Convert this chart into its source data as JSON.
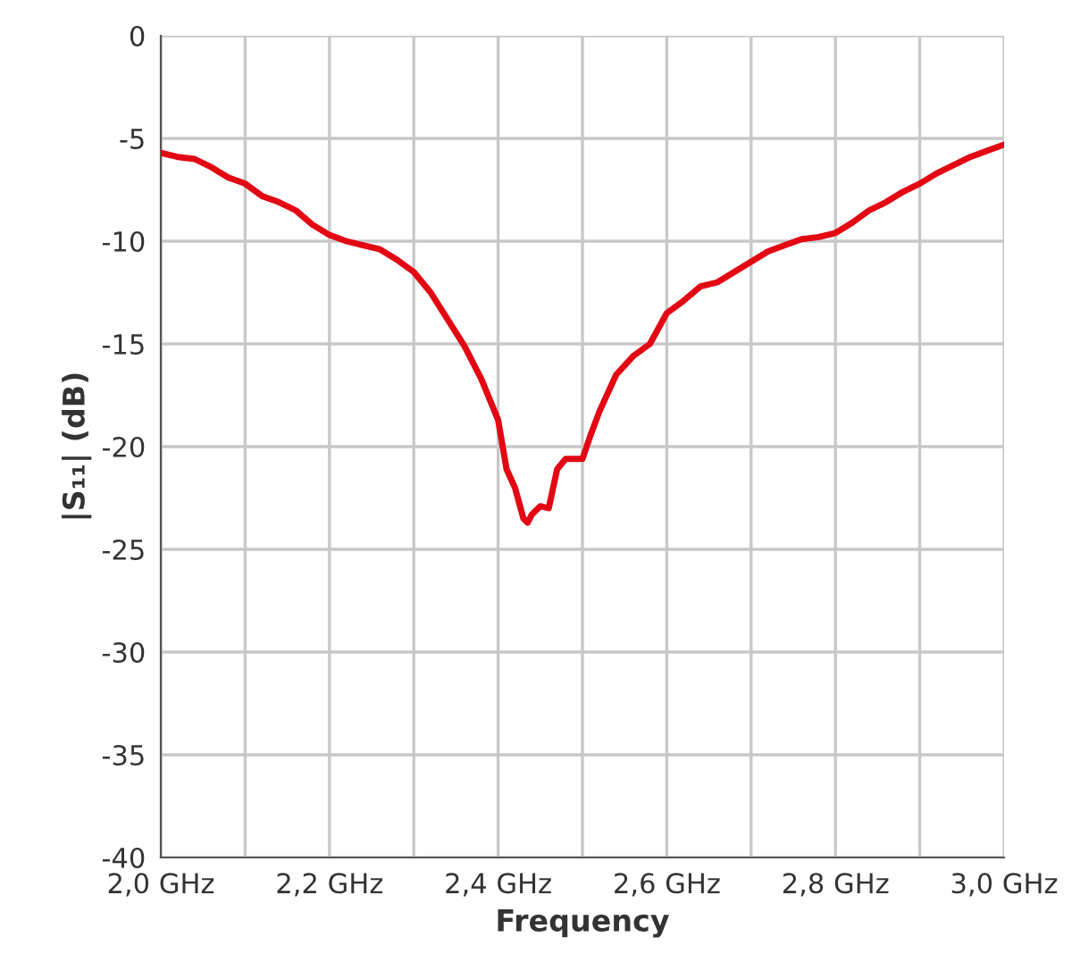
{
  "chart_data": {
    "type": "line",
    "xlabel": "Frequency",
    "ylabel": "|S₁₁| (dB)",
    "x": [
      2.0,
      2.02,
      2.04,
      2.06,
      2.08,
      2.1,
      2.12,
      2.14,
      2.16,
      2.18,
      2.2,
      2.22,
      2.24,
      2.26,
      2.28,
      2.3,
      2.32,
      2.34,
      2.36,
      2.38,
      2.4,
      2.41,
      2.42,
      2.43,
      2.435,
      2.44,
      2.45,
      2.46,
      2.47,
      2.48,
      2.49,
      2.5,
      2.51,
      2.52,
      2.54,
      2.56,
      2.58,
      2.6,
      2.62,
      2.64,
      2.66,
      2.68,
      2.7,
      2.72,
      2.74,
      2.76,
      2.78,
      2.8,
      2.82,
      2.84,
      2.86,
      2.88,
      2.9,
      2.92,
      2.94,
      2.96,
      2.98,
      3.0
    ],
    "series": [
      {
        "color": "#e30613",
        "values": [
          -5.7,
          -5.9,
          -6.0,
          -6.4,
          -6.9,
          -7.2,
          -7.8,
          -8.1,
          -8.5,
          -9.2,
          -9.7,
          -10.0,
          -10.2,
          -10.4,
          -10.9,
          -11.5,
          -12.5,
          -13.8,
          -15.1,
          -16.7,
          -18.7,
          -21.1,
          -22.0,
          -23.5,
          -23.7,
          -23.3,
          -22.9,
          -23.0,
          -21.1,
          -20.6,
          -20.6,
          -20.6,
          -19.4,
          -18.3,
          -16.5,
          -15.6,
          -15.0,
          -13.5,
          -12.9,
          -12.2,
          -12.0,
          -11.5,
          -11.0,
          -10.5,
          -10.2,
          -9.9,
          -9.8,
          -9.6,
          -9.1,
          -8.5,
          -8.1,
          -7.6,
          -7.2,
          -6.7,
          -6.3,
          -5.9,
          -5.6,
          -5.3
        ]
      }
    ],
    "xlim": [
      2.0,
      3.0
    ],
    "ylim": [
      -40,
      0
    ],
    "xticks": [
      {
        "value": 2.0,
        "label": "2,0 GHz"
      },
      {
        "value": 2.2,
        "label": "2,2 GHz"
      },
      {
        "value": 2.4,
        "label": "2,4 GHz"
      },
      {
        "value": 2.6,
        "label": "2,6 GHz"
      },
      {
        "value": 2.8,
        "label": "2,8 GHz"
      },
      {
        "value": 3.0,
        "label": "3,0 GHz"
      }
    ],
    "yticks": [
      0,
      -5,
      -10,
      -15,
      -20,
      -25,
      -30,
      -35,
      -40
    ],
    "grid": true,
    "marker": "none",
    "line_style": "solid"
  }
}
